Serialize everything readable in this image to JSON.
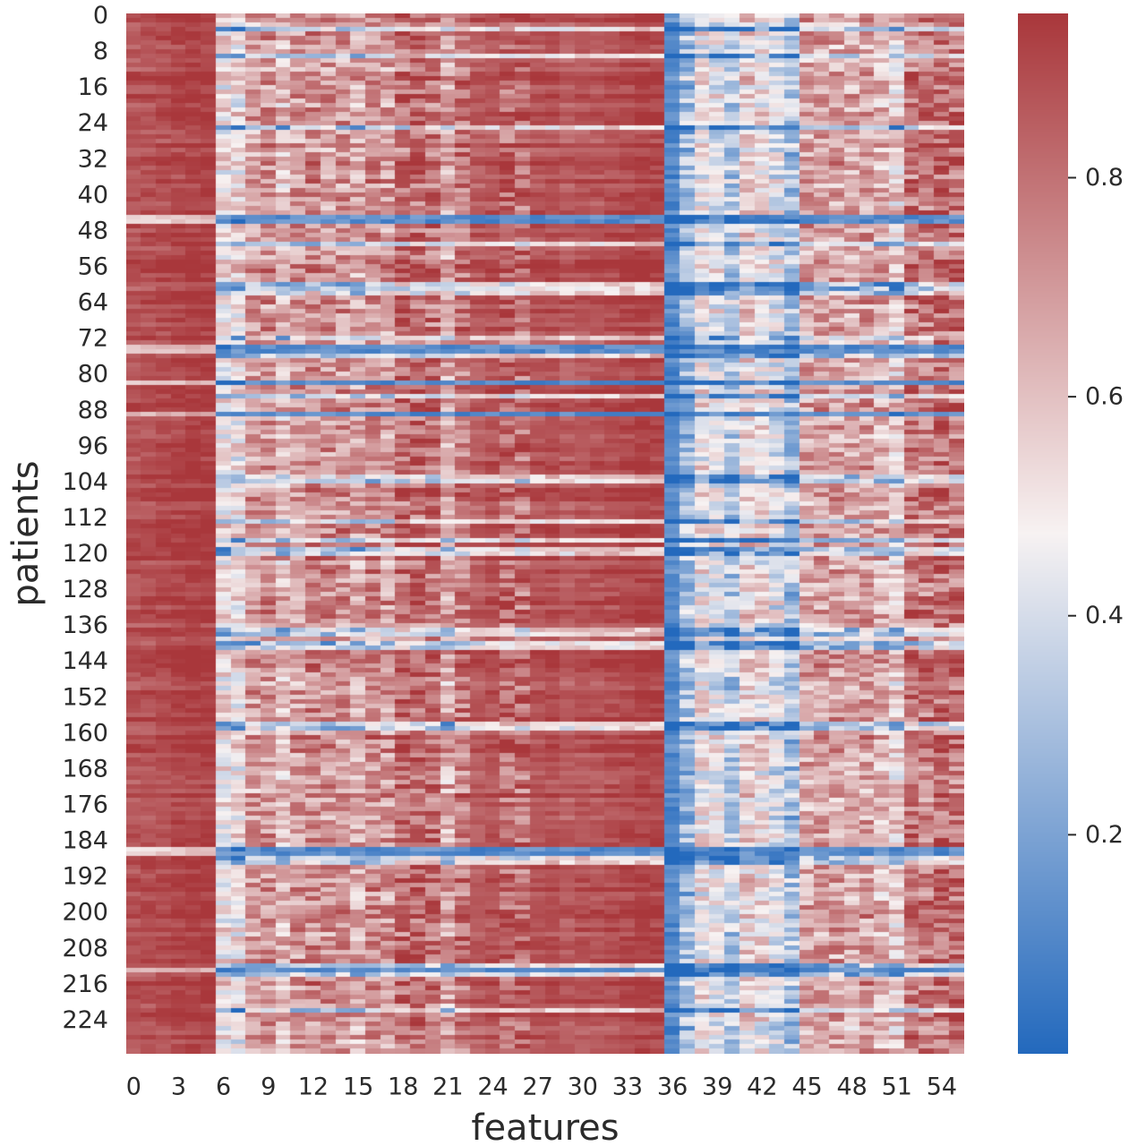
{
  "chart_data": {
    "type": "heatmap",
    "xlabel": "features",
    "ylabel": "patients",
    "n_rows": 232,
    "n_cols": 56,
    "x_tick_labels": [
      "0",
      "3",
      "6",
      "9",
      "12",
      "15",
      "18",
      "21",
      "24",
      "27",
      "30",
      "33",
      "36",
      "39",
      "42",
      "45",
      "48",
      "51",
      "54"
    ],
    "x_tick_step": 3,
    "y_tick_labels": [
      "0",
      "8",
      "16",
      "24",
      "32",
      "40",
      "48",
      "56",
      "64",
      "72",
      "80",
      "88",
      "96",
      "104",
      "112",
      "120",
      "128",
      "136",
      "144",
      "152",
      "160",
      "168",
      "176",
      "184",
      "192",
      "200",
      "208",
      "216",
      "224"
    ],
    "y_tick_step": 8,
    "value_range": [
      0.0,
      0.95
    ],
    "colormap": {
      "name": "vlag",
      "low": "#2369bd",
      "mid": "#f7f2f2",
      "high": "#a9373b"
    },
    "colorbar": {
      "tick_labels": [
        "0.2",
        "0.4",
        "0.6",
        "0.8"
      ],
      "tick_values": [
        0.2,
        0.4,
        0.6,
        0.8
      ]
    },
    "column_mean_values": [
      0.88,
      0.89,
      0.9,
      0.92,
      0.93,
      0.93,
      0.52,
      0.51,
      0.7,
      0.72,
      0.62,
      0.7,
      0.74,
      0.71,
      0.72,
      0.66,
      0.74,
      0.7,
      0.82,
      0.83,
      0.8,
      0.66,
      0.8,
      0.86,
      0.88,
      0.84,
      0.82,
      0.88,
      0.89,
      0.86,
      0.88,
      0.88,
      0.89,
      0.91,
      0.93,
      0.92,
      0.12,
      0.3,
      0.5,
      0.46,
      0.34,
      0.55,
      0.52,
      0.44,
      0.31,
      0.68,
      0.7,
      0.68,
      0.66,
      0.7,
      0.64,
      0.56,
      0.8,
      0.78,
      0.82,
      0.8
    ],
    "low_value_rows": [
      3,
      9,
      25,
      45,
      46,
      51,
      60,
      61,
      62,
      72,
      74,
      76,
      82,
      85,
      89,
      103,
      104,
      113,
      117,
      119,
      120,
      137,
      138,
      140,
      141,
      158,
      159,
      186,
      187,
      188,
      189,
      212,
      213,
      214,
      222
    ],
    "very_low_rows": [
      45,
      46,
      74,
      75,
      82,
      89,
      186,
      187,
      213
    ]
  }
}
